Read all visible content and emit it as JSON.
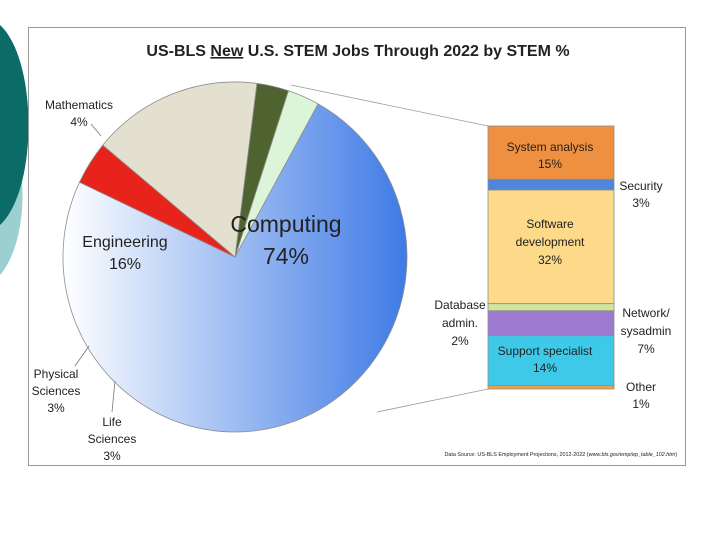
{
  "colors": {
    "deco_dark": "#0b6b66",
    "deco_light": "#9ccfcf",
    "computing_start": "#ffffff",
    "computing_end": "#3e7ae6",
    "mathematics": "#e8231b",
    "engineering": "#e4e0d0",
    "physical_sciences": "#4f6330",
    "life_sciences": "#dcf5d8",
    "system_analysis": "#ee9040",
    "security": "#4f86d9",
    "software_development": "#fdd98a",
    "database_admin": "#cfe6a0",
    "network_sysadmin": "#9b7ad0",
    "support_specialist": "#3fc9e8",
    "other": "#eda14c"
  },
  "chart_data": [
    {
      "type": "pie",
      "title": {
        "before": "US-BLS ",
        "underlined": "New",
        "after": " U.S. STEM Jobs Through 2022 by STEM %"
      },
      "slices": [
        {
          "name": "Computing",
          "value": 74,
          "label": "74%"
        },
        {
          "name": "Life Sciences",
          "value": 3,
          "label": "3%"
        },
        {
          "name": "Physical Sciences",
          "value": 3,
          "label": "3%"
        },
        {
          "name": "Engineering",
          "value": 16,
          "label": "16%"
        },
        {
          "name": "Mathematics",
          "value": 4,
          "label": "4%"
        }
      ],
      "slice_labels": {
        "computing": [
          "Computing",
          "74%"
        ],
        "engineering": [
          "Engineering",
          "16%"
        ],
        "mathematics": [
          "Mathematics",
          "4%"
        ],
        "physical_sciences": [
          "Physical",
          "Sciences",
          "3%"
        ],
        "life_sciences": [
          "Life",
          "Sciences",
          "3%"
        ]
      },
      "source": {
        "prefix": "Data Source: US-BLS Employment Projections, 2012-2022 (",
        "link": "www.bls.gov/emp/ep_table_102.htm",
        "suffix": ")"
      }
    },
    {
      "type": "bar",
      "stacked": true,
      "breakdown_of": "Computing",
      "series": [
        {
          "name": "System analysis",
          "value": 15,
          "label": "15%"
        },
        {
          "name": "Security",
          "value": 3,
          "label": "3%"
        },
        {
          "name": "Software development",
          "value": 32,
          "label": "32%"
        },
        {
          "name": "Database admin.",
          "value": 2,
          "label": "2%"
        },
        {
          "name": "Network/sysadmin",
          "value": 7,
          "label": "7%"
        },
        {
          "name": "Support specialist",
          "value": 14,
          "label": "14%"
        },
        {
          "name": "Other",
          "value": 1,
          "label": "1%"
        }
      ],
      "segment_labels": {
        "system_analysis": [
          "System analysis",
          "15%"
        ],
        "security": [
          "Security",
          "3%"
        ],
        "software_development": [
          "Software",
          "development",
          "32%"
        ],
        "database_admin": [
          "Database",
          "admin.",
          "2%"
        ],
        "network_sysadmin": [
          "Network/",
          "sysadmin",
          "7%"
        ],
        "support_specialist": [
          "Support specialist",
          "14%"
        ],
        "other": [
          "Other",
          "1%"
        ]
      }
    }
  ]
}
